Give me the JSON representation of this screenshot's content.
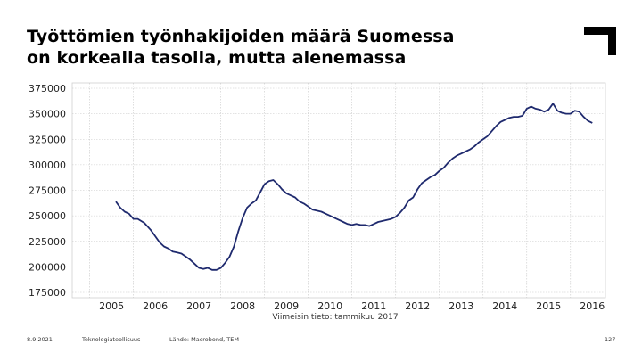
{
  "title_line1": "Työttömien työnhakijoiden määrä Suomessa",
  "title_line2": "on korkealla tasolla, mutta alenemassa",
  "footer": {
    "date": "8.9.2021",
    "org": "Teknologiateollisuus",
    "source": "Lähde: Macrobond, TEM",
    "page": "127"
  },
  "chart_data": {
    "type": "line",
    "title": "",
    "xlabel": "",
    "ylabel": "",
    "note": "Viimeisin tieto: tammikuu 2017",
    "xlim": [
      2004.6,
      2016.8
    ],
    "ylim": [
      175000,
      375000
    ],
    "yticks": [
      175000,
      200000,
      225000,
      250000,
      275000,
      300000,
      325000,
      350000,
      375000
    ],
    "ytick_labels": [
      "175000",
      "200000",
      "225000",
      "250000",
      "275000",
      "300000",
      "325000",
      "350000",
      "375000"
    ],
    "xtick_labels": [
      "2005",
      "2006",
      "2007",
      "2008",
      "2009",
      "2010",
      "2011",
      "2012",
      "2013",
      "2014",
      "2015",
      "2016"
    ],
    "grid": true,
    "line_color": "#1f2a6e",
    "series": [
      {
        "x": [
          2005.6,
          2005.7,
          2005.8,
          2005.9,
          2006.0,
          2006.1,
          2006.25,
          2006.4,
          2006.5,
          2006.6,
          2006.7,
          2006.8,
          2006.9,
          2007.0,
          2007.1,
          2007.2,
          2007.3,
          2007.4,
          2007.5,
          2007.6,
          2007.7,
          2007.8,
          2007.9,
          2008.0,
          2008.1,
          2008.2,
          2008.3,
          2008.4,
          2008.5,
          2008.6,
          2008.7,
          2008.8,
          2008.9,
          2009.0,
          2009.1,
          2009.2,
          2009.3,
          2009.4,
          2009.5,
          2009.6,
          2009.7,
          2009.8,
          2009.9,
          2010.0,
          2010.1,
          2010.2,
          2010.3,
          2010.4,
          2010.5,
          2010.6,
          2010.7,
          2010.8,
          2010.9,
          2011.0,
          2011.1,
          2011.2,
          2011.3,
          2011.4,
          2011.5,
          2011.6,
          2011.7,
          2011.8,
          2011.9,
          2012.0,
          2012.1,
          2012.2,
          2012.3,
          2012.4,
          2012.5,
          2012.6,
          2012.7,
          2012.8,
          2012.9,
          2013.0,
          2013.1,
          2013.2,
          2013.3,
          2013.4,
          2013.5,
          2013.6,
          2013.7,
          2013.8,
          2013.9,
          2014.0,
          2014.1,
          2014.2,
          2014.3,
          2014.4,
          2014.5,
          2014.6,
          2014.7,
          2014.8,
          2014.9,
          2015.0,
          2015.1,
          2015.2,
          2015.3,
          2015.4,
          2015.5,
          2015.6,
          2015.7,
          2015.8,
          2015.9,
          2016.0,
          2016.1,
          2016.2,
          2016.3,
          2016.4,
          2016.5
        ],
        "y": [
          264000,
          258000,
          254000,
          252000,
          247000,
          247000,
          243000,
          236000,
          230000,
          224000,
          220000,
          218000,
          215000,
          214000,
          213000,
          210000,
          207000,
          203000,
          199000,
          198000,
          199000,
          197000,
          197000,
          199000,
          204000,
          210000,
          220000,
          235000,
          248000,
          258000,
          262000,
          265000,
          273000,
          281000,
          284000,
          285000,
          281000,
          276000,
          272000,
          270000,
          268000,
          264000,
          262000,
          259000,
          256000,
          255000,
          254000,
          252000,
          250000,
          248000,
          246000,
          244000,
          242000,
          241000,
          242000,
          241000,
          241000,
          240000,
          242000,
          244000,
          245000,
          246000,
          247000,
          249000,
          253000,
          258000,
          265000,
          268000,
          276000,
          282000,
          285000,
          288000,
          290000,
          294000,
          297000,
          302000,
          306000,
          309000,
          311000,
          313000,
          315000,
          318000,
          322000,
          325000,
          328000,
          333000,
          338000,
          342000,
          344000,
          346000,
          347000,
          347000,
          348000,
          355000,
          357000,
          355000,
          354000,
          352000,
          354000,
          360000,
          353000,
          351000,
          350000,
          350000,
          353000,
          352000,
          347000,
          343000,
          341000
        ]
      }
    ]
  }
}
